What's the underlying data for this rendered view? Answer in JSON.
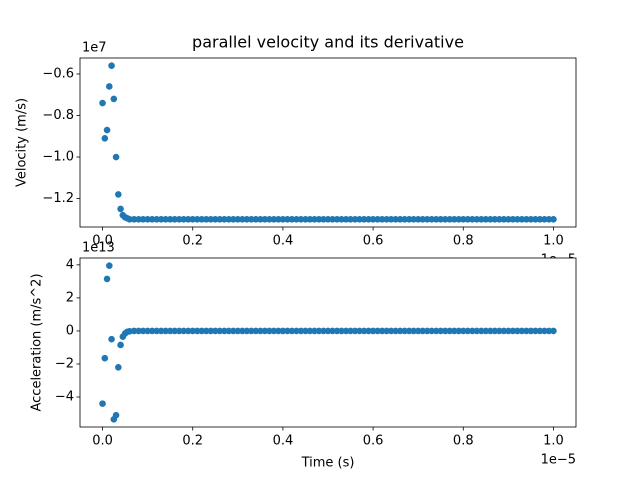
{
  "title": "parallel velocity and its derivative",
  "chart_data": [
    {
      "type": "scatter",
      "y_label": "Velocity (m/s)",
      "y_offset": "1e7",
      "x_offset": "1e−5",
      "color": "#1f77b4",
      "xlim": [
        -0.05,
        1.05
      ],
      "ylim": [
        -1.337,
        -0.523
      ],
      "xticks": [
        {
          "value": 0,
          "label": "0.0"
        },
        {
          "value": 0.2,
          "label": "0.2"
        },
        {
          "value": 0.4,
          "label": "0.4"
        },
        {
          "value": 0.6,
          "label": "0.6"
        },
        {
          "value": 0.8,
          "label": "0.8"
        },
        {
          "value": 1,
          "label": "1.0"
        }
      ],
      "yticks": [
        {
          "value": -0.6,
          "label": "−0.6"
        },
        {
          "value": -0.8,
          "label": "−0.8"
        },
        {
          "value": -1,
          "label": "−1.0"
        },
        {
          "value": -1.2,
          "label": "−1.2"
        }
      ],
      "x": [
        0,
        0.005,
        0.01,
        0.015,
        0.02,
        0.025,
        0.03,
        0.035,
        0.04,
        0.045,
        0.05,
        0.055,
        0.06,
        0.07,
        0.08,
        0.09,
        0.1,
        0.11,
        0.12,
        0.13,
        0.14,
        0.15,
        0.16,
        0.17,
        0.18,
        0.19,
        0.2,
        0.21,
        0.22,
        0.23,
        0.24,
        0.25,
        0.26,
        0.27,
        0.28,
        0.29,
        0.3,
        0.31,
        0.32,
        0.33,
        0.34,
        0.35,
        0.36,
        0.37,
        0.38,
        0.39,
        0.4,
        0.41,
        0.42,
        0.43,
        0.44,
        0.45,
        0.46,
        0.47,
        0.48,
        0.49,
        0.5,
        0.51,
        0.52,
        0.53,
        0.54,
        0.55,
        0.56,
        0.57,
        0.58,
        0.59,
        0.6,
        0.61,
        0.62,
        0.63,
        0.64,
        0.65,
        0.66,
        0.67,
        0.68,
        0.69,
        0.7,
        0.71,
        0.72,
        0.73,
        0.74,
        0.75,
        0.76,
        0.77,
        0.78,
        0.79,
        0.8,
        0.81,
        0.82,
        0.83,
        0.84,
        0.85,
        0.86,
        0.87,
        0.88,
        0.89,
        0.9,
        0.91,
        0.92,
        0.93,
        0.94,
        0.95,
        0.96,
        0.97,
        0.98,
        0.99,
        1
      ],
      "values": [
        -0.74,
        -0.91,
        -0.87,
        -0.66,
        -0.56,
        -0.72,
        -1,
        -1.18,
        -1.25,
        -1.28,
        -1.29,
        -1.295,
        -1.3,
        -1.3,
        -1.3,
        -1.3,
        -1.3,
        -1.3,
        -1.3,
        -1.3,
        -1.3,
        -1.3,
        -1.3,
        -1.3,
        -1.3,
        -1.3,
        -1.3,
        -1.3,
        -1.3,
        -1.3,
        -1.3,
        -1.3,
        -1.3,
        -1.3,
        -1.3,
        -1.3,
        -1.3,
        -1.3,
        -1.3,
        -1.3,
        -1.3,
        -1.3,
        -1.3,
        -1.3,
        -1.3,
        -1.3,
        -1.3,
        -1.3,
        -1.3,
        -1.3,
        -1.3,
        -1.3,
        -1.3,
        -1.3,
        -1.3,
        -1.3,
        -1.3,
        -1.3,
        -1.3,
        -1.3,
        -1.3,
        -1.3,
        -1.3,
        -1.3,
        -1.3,
        -1.3,
        -1.3,
        -1.3,
        -1.3,
        -1.3,
        -1.3,
        -1.3,
        -1.3,
        -1.3,
        -1.3,
        -1.3,
        -1.3,
        -1.3,
        -1.3,
        -1.3,
        -1.3,
        -1.3,
        -1.3,
        -1.3,
        -1.3,
        -1.3,
        -1.3,
        -1.3,
        -1.3,
        -1.3,
        -1.3,
        -1.3,
        -1.3,
        -1.3,
        -1.3,
        -1.3,
        -1.3,
        -1.3,
        -1.3,
        -1.3,
        -1.3,
        -1.3,
        -1.3,
        -1.3,
        -1.3,
        -1.3,
        -1.3
      ]
    },
    {
      "type": "scatter",
      "y_label": "Acceleration (m/s^2)",
      "x_label": "Time (s)",
      "y_offset": "1e13",
      "x_offset": "1e−5",
      "color": "#1f77b4",
      "xlim": [
        -0.05,
        1.05
      ],
      "ylim": [
        -5.815,
        4.415
      ],
      "xticks": [
        {
          "value": 0,
          "label": "0.0"
        },
        {
          "value": 0.2,
          "label": "0.2"
        },
        {
          "value": 0.4,
          "label": "0.4"
        },
        {
          "value": 0.6,
          "label": "0.6"
        },
        {
          "value": 0.8,
          "label": "0.8"
        },
        {
          "value": 1,
          "label": "1.0"
        }
      ],
      "yticks": [
        4,
        2,
        0,
        {
          "value": -2,
          "label": "−2"
        },
        {
          "value": -4,
          "label": "−4"
        }
      ],
      "x": [
        0,
        0.005,
        0.01,
        0.015,
        0.02,
        0.025,
        0.03,
        0.035,
        0.04,
        0.045,
        0.05,
        0.055,
        0.06,
        0.07,
        0.08,
        0.09,
        0.1,
        0.11,
        0.12,
        0.13,
        0.14,
        0.15,
        0.16,
        0.17,
        0.18,
        0.19,
        0.2,
        0.21,
        0.22,
        0.23,
        0.24,
        0.25,
        0.26,
        0.27,
        0.28,
        0.29,
        0.3,
        0.31,
        0.32,
        0.33,
        0.34,
        0.35,
        0.36,
        0.37,
        0.38,
        0.39,
        0.4,
        0.41,
        0.42,
        0.43,
        0.44,
        0.45,
        0.46,
        0.47,
        0.48,
        0.49,
        0.5,
        0.51,
        0.52,
        0.53,
        0.54,
        0.55,
        0.56,
        0.57,
        0.58,
        0.59,
        0.6,
        0.61,
        0.62,
        0.63,
        0.64,
        0.65,
        0.66,
        0.67,
        0.68,
        0.69,
        0.7,
        0.71,
        0.72,
        0.73,
        0.74,
        0.75,
        0.76,
        0.77,
        0.78,
        0.79,
        0.8,
        0.81,
        0.82,
        0.83,
        0.84,
        0.85,
        0.86,
        0.87,
        0.88,
        0.89,
        0.9,
        0.91,
        0.92,
        0.93,
        0.94,
        0.95,
        0.96,
        0.97,
        0.98,
        0.99,
        1
      ],
      "values": [
        -4.4,
        -1.65,
        3.15,
        3.95,
        -0.5,
        -5.35,
        -5.1,
        -2.2,
        -0.85,
        -0.35,
        -0.15,
        -0.05,
        -0.02,
        0,
        0,
        0,
        0,
        0,
        0,
        0,
        0,
        0,
        0,
        0,
        0,
        0,
        0,
        0,
        0,
        0,
        0,
        0,
        0,
        0,
        0,
        0,
        0,
        0,
        0,
        0,
        0,
        0,
        0,
        0,
        0,
        0,
        0,
        0,
        0,
        0,
        0,
        0,
        0,
        0,
        0,
        0,
        0,
        0,
        0,
        0,
        0,
        0,
        0,
        0,
        0,
        0,
        0,
        0,
        0,
        0,
        0,
        0,
        0,
        0,
        0,
        0,
        0,
        0,
        0,
        0,
        0,
        0,
        0,
        0,
        0,
        0,
        0,
        0,
        0,
        0,
        0,
        0,
        0,
        0,
        0,
        0,
        0,
        0,
        0,
        0,
        0,
        0,
        0,
        0,
        0,
        0,
        0
      ]
    }
  ]
}
